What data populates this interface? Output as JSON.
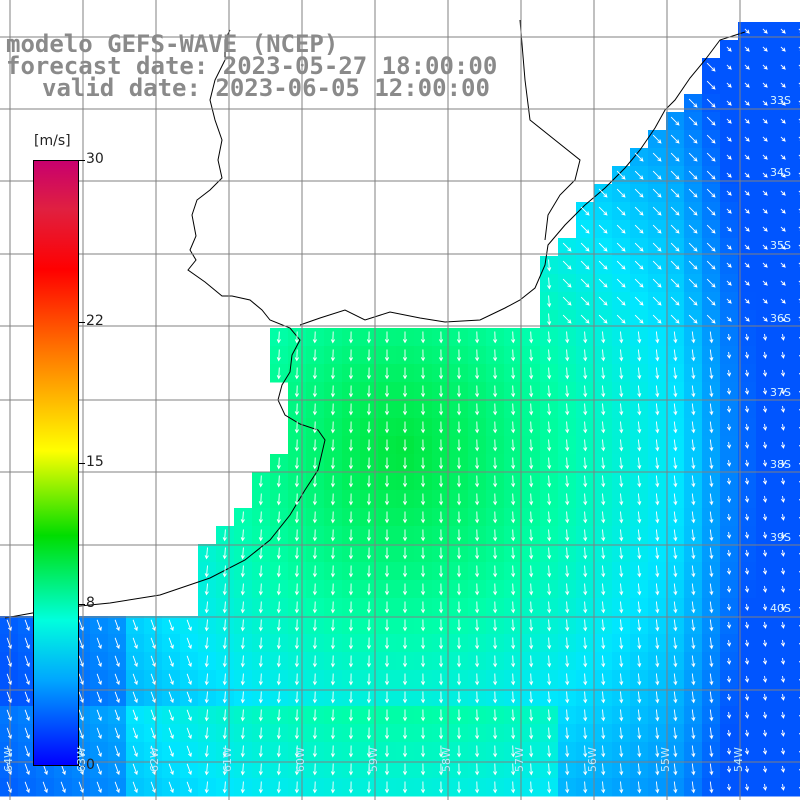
{
  "title": {
    "line1": "modelo GEFS-WAVE (NCEP)",
    "line2": "forecast date: 2023-05-27 18:00:00",
    "line3": "valid date: 2023-06-05 12:00:00"
  },
  "colorbar": {
    "unit": "[m/s]",
    "min": 0,
    "max": 30,
    "ticks": [
      {
        "label": "30",
        "value": 30
      },
      {
        "label": "22",
        "value": 22
      },
      {
        "label": "15",
        "value": 15
      },
      {
        "label": "8",
        "value": 8
      },
      {
        "label": "0",
        "value": 0
      }
    ],
    "colors": [
      "#0000ff",
      "#00a6ff",
      "#00ffdd",
      "#00dd00",
      "#ffff00",
      "#ff7a00",
      "#ff0000",
      "#e02040",
      "#c8006e"
    ]
  },
  "latitude_labels": [
    "33S",
    "34S",
    "35S",
    "36S",
    "37S",
    "38S",
    "39S",
    "40S"
  ],
  "longitude_labels": [
    "64W",
    "63W",
    "62W",
    "61W",
    "60W",
    "59W",
    "58W",
    "57W",
    "56W",
    "55W",
    "54W"
  ],
  "colors": {
    "land": "#ffffff",
    "coastline": "#000000",
    "grid": "#808080",
    "arrows": "#ffffff",
    "title_text": "#8a8a8a"
  }
}
